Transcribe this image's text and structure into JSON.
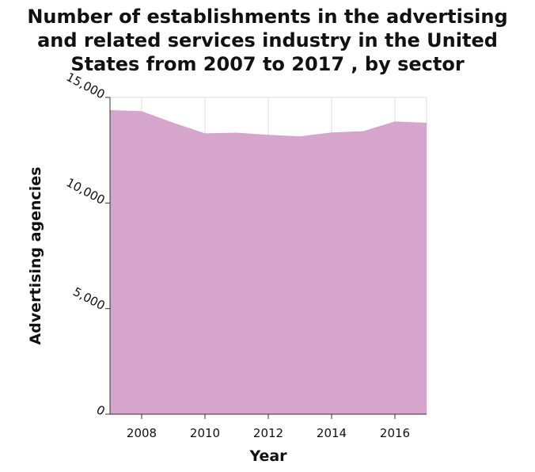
{
  "chart_data": {
    "type": "area",
    "title": "Number of establishments in the advertising\nand related services industry in the United\nStates from 2007 to 2017 , by sector",
    "xlabel": "Year",
    "ylabel": "Advertising agencies",
    "x": [
      2007,
      2008,
      2009,
      2010,
      2011,
      2012,
      2013,
      2014,
      2015,
      2016,
      2017
    ],
    "series": [
      {
        "values": [
          14400,
          14350,
          13800,
          13300,
          13330,
          13230,
          13160,
          13340,
          13400,
          13860,
          13800
        ]
      }
    ],
    "xlim": [
      2007,
      2017
    ],
    "ylim": [
      0,
      15000
    ],
    "xticks": [
      2008,
      2010,
      2012,
      2014,
      2016
    ],
    "xtick_labels": [
      "2008",
      "2010",
      "2012",
      "2014",
      "2016"
    ],
    "yticks": [
      0,
      5000,
      10000,
      15000
    ],
    "ytick_labels": [
      "0",
      "5,000",
      "10,000",
      "15,000"
    ],
    "grid": true,
    "legend": "none",
    "colors": {
      "fill": "#d5a5cb",
      "grid": "#dcdcdc",
      "axis": "#333333"
    }
  }
}
